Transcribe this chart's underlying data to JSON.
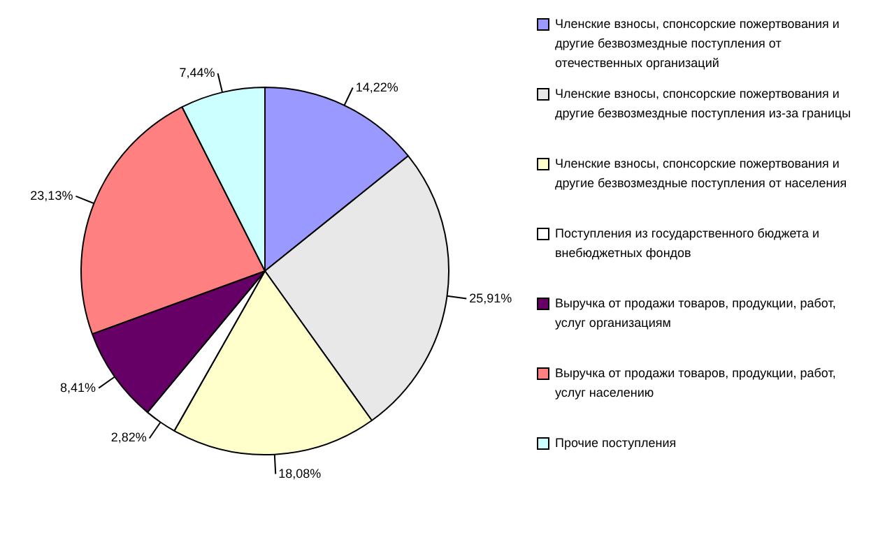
{
  "chart_data": {
    "type": "pie",
    "categories": [
      "Членские взносы, спонсорские пожертвования и другие безвозмездные поступления от отечественных организаций",
      "Членские взносы, спонсорские пожертвования и другие безвозмездные поступления из-за границы",
      "Членские взносы, спонсорские пожертвования и другие безвозмездные поступления от населения",
      "Поступления из государственного бюджета и внебюджетных фондов",
      "Выручка от продажи товаров, продукции, работ, услуг организациям",
      "Выручка от продажи товаров, продукции, работ, услуг населению",
      "Прочие поступления"
    ],
    "values": [
      14.22,
      25.91,
      18.08,
      2.82,
      8.41,
      23.13,
      7.44
    ],
    "value_labels": [
      "14,22%",
      "25,91%",
      "18,08%",
      "2,82%",
      "8,41%",
      "23,13%",
      "7,44%"
    ],
    "colors": [
      "#9999ff",
      "#e8e8e8",
      "#ffffcc",
      "#ffffff",
      "#660066",
      "#ff8080",
      "#ccffff"
    ],
    "legend": "right"
  }
}
